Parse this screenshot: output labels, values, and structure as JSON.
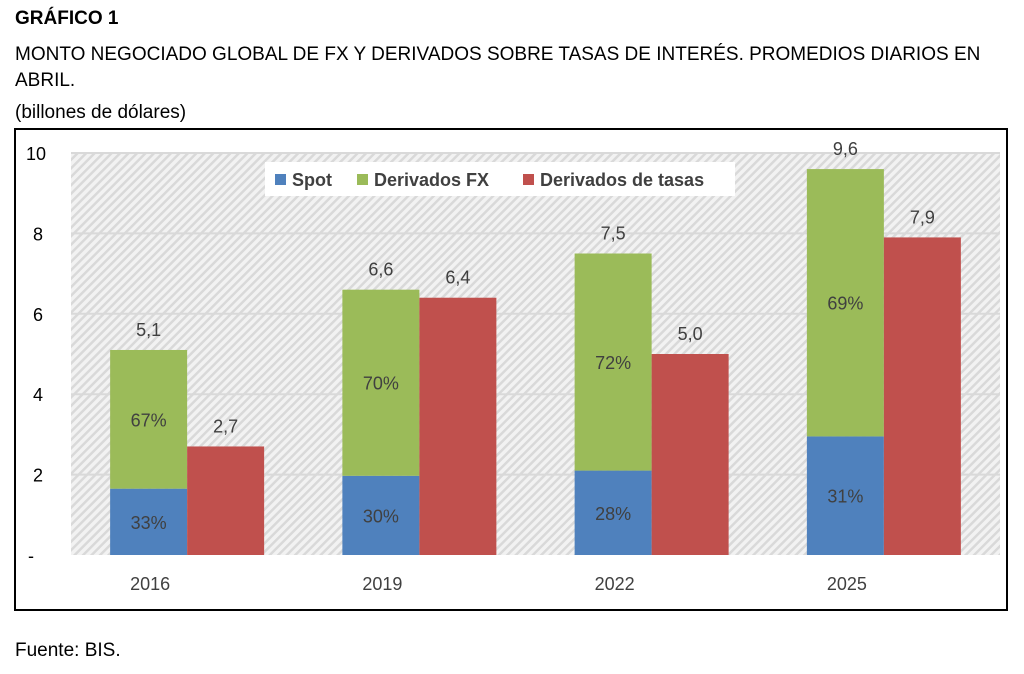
{
  "header": {
    "title": "GRÁFICO 1",
    "subtitle": "MONTO NEGOCIADO GLOBAL DE FX Y DERIVADOS SOBRE TASAS DE INTERÉS. PROMEDIOS DIARIOS EN ABRIL.",
    "unit": "(billones de dólares)"
  },
  "footer": {
    "source": "Fuente: BIS."
  },
  "chart_data": {
    "type": "bar",
    "stacked_group": [
      "Spot",
      "Derivados FX"
    ],
    "categories": [
      "2016",
      "2019",
      "2022",
      "2025"
    ],
    "series": [
      {
        "name": "Spot",
        "color": "#4f81bd",
        "values": [
          1.65,
          1.97,
          2.1,
          2.95
        ],
        "labels": [
          "33%",
          "30%",
          "28%",
          "31%"
        ]
      },
      {
        "name": "Derivados FX",
        "color": "#9bbb59",
        "values": [
          3.45,
          4.63,
          5.4,
          6.65
        ],
        "labels": [
          "67%",
          "70%",
          "72%",
          "69%"
        ]
      },
      {
        "name": "Derivados de tasas",
        "color": "#c0504d",
        "values": [
          2.7,
          6.4,
          5.0,
          7.9
        ],
        "labels": [
          "2,7",
          "6,4",
          "5,0",
          "7,9"
        ]
      }
    ],
    "fx_totals": [
      "5,1",
      "6,6",
      "7,5",
      "9,6"
    ],
    "ylim": [
      0,
      10
    ],
    "yticks": [
      "-",
      "2",
      "4",
      "6",
      "8",
      "10"
    ],
    "grid": true,
    "legend": "top"
  }
}
